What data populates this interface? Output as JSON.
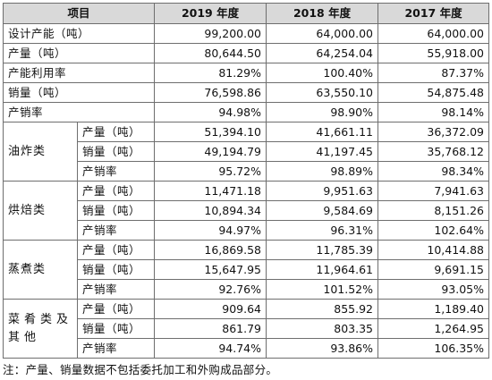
{
  "header": {
    "item": "项目",
    "y2019": "2019 年度",
    "y2018": "2018 年度",
    "y2017": "2017 年度"
  },
  "totals": [
    {
      "label": "设计产能（吨）",
      "v2019": "99,200.00",
      "v2018": "64,000.00",
      "v2017": "64,000.00"
    },
    {
      "label": "产量（吨）",
      "v2019": "80,644.50",
      "v2018": "64,254.04",
      "v2017": "55,918.00"
    },
    {
      "label": "产能利用率",
      "v2019": "81.29%",
      "v2018": "100.40%",
      "v2017": "87.37%"
    },
    {
      "label": "销量（吨）",
      "v2019": "76,598.86",
      "v2018": "63,550.10",
      "v2017": "54,875.48"
    },
    {
      "label": "产销率",
      "v2019": "94.98%",
      "v2018": "98.90%",
      "v2017": "98.14%"
    }
  ],
  "groups": [
    {
      "name": "油炸类",
      "rows": [
        {
          "label": "产量（吨）",
          "v2019": "51,394.10",
          "v2018": "41,661.11",
          "v2017": "36,372.09"
        },
        {
          "label": "销量（吨）",
          "v2019": "49,194.79",
          "v2018": "41,197.45",
          "v2017": "35,768.12"
        },
        {
          "label": "产销率",
          "v2019": "95.72%",
          "v2018": "98.89%",
          "v2017": "98.34%"
        }
      ]
    },
    {
      "name": "烘焙类",
      "rows": [
        {
          "label": "产量（吨）",
          "v2019": "11,471.18",
          "v2018": "9,951.63",
          "v2017": "7,941.63"
        },
        {
          "label": "销量（吨）",
          "v2019": "10,894.34",
          "v2018": "9,584.69",
          "v2017": "8,151.26"
        },
        {
          "label": "产销率",
          "v2019": "94.97%",
          "v2018": "96.31%",
          "v2017": "102.64%"
        }
      ]
    },
    {
      "name": "蒸煮类",
      "rows": [
        {
          "label": "产量（吨）",
          "v2019": "16,869.58",
          "v2018": "11,785.39",
          "v2017": "10,414.88"
        },
        {
          "label": "销量（吨）",
          "v2019": "15,647.95",
          "v2018": "11,964.61",
          "v2017": "9,691.15"
        },
        {
          "label": "产销率",
          "v2019": "92.76%",
          "v2018": "101.52%",
          "v2017": "93.05%"
        }
      ]
    },
    {
      "name": "菜肴类及其他",
      "rows": [
        {
          "label": "产量（吨）",
          "v2019": "909.64",
          "v2018": "855.92",
          "v2017": "1,189.40"
        },
        {
          "label": "销量（吨）",
          "v2019": "861.79",
          "v2018": "803.35",
          "v2017": "1,264.95"
        },
        {
          "label": "产销率",
          "v2019": "94.74%",
          "v2018": "93.86%",
          "v2017": "106.35%"
        }
      ]
    }
  ],
  "note": "注：产量、销量数据不包括委托加工和外购成品部分。"
}
